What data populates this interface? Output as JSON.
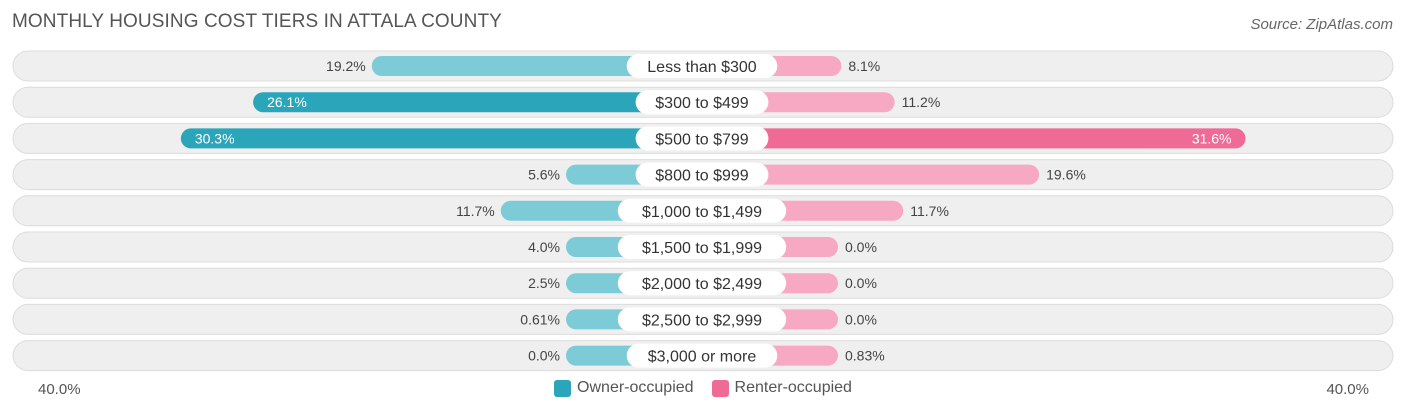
{
  "title": "MONTHLY HOUSING COST TIERS IN ATTALA COUNTY",
  "source": "Source: ZipAtlas.com",
  "colors": {
    "owner_strong": "#2ba5b9",
    "owner_light": "#7ccbd6",
    "renter_strong": "#f06a96",
    "renter_light": "#f7a8c2",
    "row_bg": "#efefef",
    "row_border": "#dcdcdc"
  },
  "chart_data": {
    "type": "bar",
    "orientation": "diverging-horizontal",
    "categories": [
      "Less than $300",
      "$300 to $499",
      "$500 to $799",
      "$800 to $999",
      "$1,000 to $1,499",
      "$1,500 to $1,999",
      "$2,000 to $2,499",
      "$2,500 to $2,999",
      "$3,000 or more"
    ],
    "series": [
      {
        "name": "Owner-occupied",
        "values": [
          19.2,
          26.1,
          30.3,
          5.6,
          11.7,
          4.0,
          2.5,
          0.61,
          0.0
        ],
        "labels": [
          "19.2%",
          "26.1%",
          "30.3%",
          "5.6%",
          "11.7%",
          "4.0%",
          "2.5%",
          "0.61%",
          "0.0%"
        ]
      },
      {
        "name": "Renter-occupied",
        "values": [
          8.1,
          11.2,
          31.6,
          19.6,
          11.7,
          0.0,
          0.0,
          0.0,
          0.83
        ],
        "labels": [
          "8.1%",
          "11.2%",
          "31.6%",
          "19.6%",
          "11.7%",
          "0.0%",
          "0.0%",
          "0.0%",
          "0.83%"
        ]
      }
    ],
    "xlim": [
      -40,
      40
    ],
    "axis_left_label": "40.0%",
    "axis_right_label": "40.0%",
    "legend_position": "bottom-center"
  }
}
